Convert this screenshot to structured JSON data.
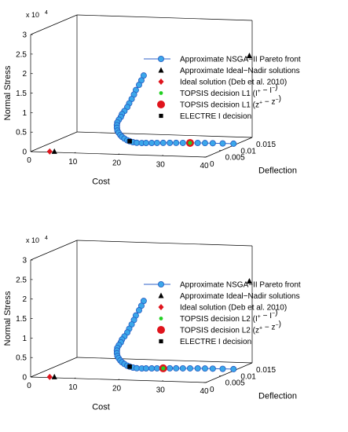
{
  "chart_data": [
    {
      "type": "scatter",
      "projection": "3d",
      "xlabel": "Cost",
      "ylabel": "Deflection",
      "zlabel": "Normal Stress",
      "z_exponent_label": "x 10",
      "z_exponent_power": "4",
      "xlim": [
        0,
        40
      ],
      "ylim": [
        0,
        0.015
      ],
      "zlim": [
        0,
        3
      ],
      "x_ticks": [
        "0",
        "10",
        "20",
        "30",
        "40"
      ],
      "y_ticks": [
        "0",
        "0.005",
        "0.01",
        "0.015"
      ],
      "z_ticks": [
        "0",
        "0.5",
        "1",
        "1.5",
        "2",
        "2.5",
        "3"
      ],
      "legend_position": "upper-right",
      "legend": [
        {
          "label": "Approximate NSGA−II Pareto front",
          "marker": "line-circle",
          "color": "#3ba7ea"
        },
        {
          "label": "Approximate Ideal−Nadir solutions",
          "marker": "triangle",
          "color": "#000000"
        },
        {
          "label": "Ideal solution (Deb et al. 2010)",
          "marker": "diamond",
          "color": "#e0141c"
        },
        {
          "label_prefix": "TOPSIS decision L1 (",
          "label_a": "I",
          "label_b": "I",
          "marker": "small-circle",
          "color": "#22d022",
          "sup": "+",
          "sup2": "−",
          "sep": " − "
        },
        {
          "label_prefix": "TOPSIS decision L1 (",
          "label_a": "z",
          "label_b": "z",
          "marker": "big-circle",
          "color": "#e0141c",
          "sup": "+",
          "sup2": "−",
          "sep": " − "
        },
        {
          "label": "ELECTRE I decision",
          "marker": "square",
          "color": "#000000"
        }
      ],
      "series": [
        {
          "name": "Approximate NSGA−II Pareto front",
          "points": [
            [
              25.6,
              0.0003,
              2.03
            ],
            [
              25.0,
              0.0004,
              1.9
            ],
            [
              24.4,
              0.0005,
              1.78
            ],
            [
              23.6,
              0.0006,
              1.64
            ],
            [
              23.1,
              0.0007,
              1.52
            ],
            [
              22.5,
              0.0008,
              1.4
            ],
            [
              21.8,
              0.001,
              1.28
            ],
            [
              21.3,
              0.0011,
              1.18
            ],
            [
              20.5,
              0.0013,
              1.07
            ],
            [
              19.8,
              0.0015,
              0.98
            ],
            [
              19.4,
              0.0017,
              0.9
            ],
            [
              18.8,
              0.0019,
              0.82
            ],
            [
              18.3,
              0.0021,
              0.74
            ],
            [
              18.0,
              0.0024,
              0.66
            ],
            [
              17.8,
              0.0027,
              0.58
            ],
            [
              17.7,
              0.003,
              0.5
            ],
            [
              17.7,
              0.0034,
              0.43
            ],
            [
              17.8,
              0.0038,
              0.36
            ],
            [
              17.9,
              0.0042,
              0.3
            ],
            [
              18.1,
              0.0047,
              0.24
            ],
            [
              18.4,
              0.0052,
              0.18
            ],
            [
              18.6,
              0.0057,
              0.14
            ],
            [
              19.0,
              0.0062,
              0.1
            ],
            [
              19.5,
              0.0067,
              0.07
            ],
            [
              20.3,
              0.0072,
              0.05
            ],
            [
              21.0,
              0.0076,
              0.04
            ],
            [
              22.0,
              0.008,
              0.03
            ],
            [
              23.0,
              0.0083,
              0.025
            ],
            [
              24.2,
              0.0086,
              0.02
            ],
            [
              25.5,
              0.0089,
              0.015
            ],
            [
              26.8,
              0.0091,
              0.012
            ],
            [
              28.2,
              0.0093,
              0.01
            ],
            [
              29.7,
              0.0095,
              0.008
            ],
            [
              31.3,
              0.0097,
              0.006
            ],
            [
              32.9,
              0.0098,
              0.005
            ],
            [
              34.6,
              0.0099,
              0.004
            ],
            [
              36.8,
              0.01,
              0.003
            ],
            [
              39.2,
              0.0101,
              0.0025
            ]
          ]
        },
        {
          "name": "Approximate Ideal−Nadir solutions",
          "points": [
            [
              5.0,
              0.0006,
              0.0
            ],
            [
              39.5,
              0.0148,
              2.1
            ]
          ]
        },
        {
          "name": "Ideal solution (Deb et al. 2010)",
          "points": [
            [
              4.0,
              0.0005,
              0.0
            ]
          ]
        },
        {
          "name": "TOPSIS decision L1",
          "points": [
            [
              29.7,
              0.0095,
              0.008
            ]
          ]
        },
        {
          "name": "TOPSIS decision L1 (z)",
          "points": [
            [
              29.7,
              0.0095,
              0.008
            ]
          ]
        },
        {
          "name": "ELECTRE I decision",
          "points": [
            [
              18.6,
              0.0057,
              0.14
            ]
          ]
        }
      ]
    },
    {
      "type": "scatter",
      "projection": "3d",
      "xlabel": "Cost",
      "ylabel": "Deflection",
      "zlabel": "Normal Stress",
      "z_exponent_label": "x 10",
      "z_exponent_power": "4",
      "xlim": [
        0,
        40
      ],
      "ylim": [
        0,
        0.015
      ],
      "zlim": [
        0,
        3
      ],
      "x_ticks": [
        "0",
        "10",
        "20",
        "30",
        "40"
      ],
      "y_ticks": [
        "0",
        "0.005",
        "0.01",
        "0.015"
      ],
      "z_ticks": [
        "0",
        "0.5",
        "1",
        "1.5",
        "2",
        "2.5",
        "3"
      ],
      "legend_position": "upper-right",
      "legend": [
        {
          "label": "Approximate NSGA−II Pareto front",
          "marker": "line-circle",
          "color": "#3ba7ea"
        },
        {
          "label": "Approximate Ideal−Nadir solutions",
          "marker": "triangle",
          "color": "#000000"
        },
        {
          "label": "Ideal solution (Deb et al. 2010)",
          "marker": "diamond",
          "color": "#e0141c"
        },
        {
          "label_prefix": "TOPSIS decision L2 (",
          "label_a": "I",
          "label_b": "I",
          "marker": "small-circle",
          "color": "#22d022",
          "sup": "+",
          "sup2": "−",
          "sep": " − "
        },
        {
          "label_prefix": "TOPSIS decision L2 (",
          "label_a": "z",
          "label_b": "z",
          "marker": "big-circle",
          "color": "#e0141c",
          "sup": "+",
          "sup2": "−",
          "sep": " − "
        },
        {
          "label": "ELECTRE I decision",
          "marker": "square",
          "color": "#000000"
        }
      ],
      "series": [
        {
          "name": "Approximate NSGA−II Pareto front",
          "points": [
            [
              25.6,
              0.0003,
              2.03
            ],
            [
              25.0,
              0.0004,
              1.9
            ],
            [
              24.4,
              0.0005,
              1.78
            ],
            [
              23.6,
              0.0006,
              1.64
            ],
            [
              23.1,
              0.0007,
              1.52
            ],
            [
              22.5,
              0.0008,
              1.4
            ],
            [
              21.8,
              0.001,
              1.28
            ],
            [
              21.3,
              0.0011,
              1.18
            ],
            [
              20.5,
              0.0013,
              1.07
            ],
            [
              19.8,
              0.0015,
              0.98
            ],
            [
              19.4,
              0.0017,
              0.9
            ],
            [
              18.8,
              0.0019,
              0.82
            ],
            [
              18.3,
              0.0021,
              0.74
            ],
            [
              18.0,
              0.0024,
              0.66
            ],
            [
              17.8,
              0.0027,
              0.58
            ],
            [
              17.7,
              0.003,
              0.5
            ],
            [
              17.7,
              0.0034,
              0.43
            ],
            [
              17.8,
              0.0038,
              0.36
            ],
            [
              17.9,
              0.0042,
              0.3
            ],
            [
              18.1,
              0.0047,
              0.24
            ],
            [
              18.4,
              0.0052,
              0.18
            ],
            [
              18.6,
              0.0057,
              0.14
            ],
            [
              19.0,
              0.0062,
              0.1
            ],
            [
              19.5,
              0.0067,
              0.07
            ],
            [
              20.3,
              0.0072,
              0.05
            ],
            [
              21.0,
              0.0076,
              0.04
            ],
            [
              22.0,
              0.008,
              0.03
            ],
            [
              23.0,
              0.0083,
              0.025
            ],
            [
              24.2,
              0.0086,
              0.02
            ],
            [
              25.5,
              0.0089,
              0.015
            ],
            [
              26.8,
              0.0091,
              0.012
            ],
            [
              28.2,
              0.0093,
              0.01
            ],
            [
              29.7,
              0.0095,
              0.008
            ],
            [
              31.3,
              0.0097,
              0.006
            ],
            [
              32.9,
              0.0098,
              0.005
            ],
            [
              34.6,
              0.0099,
              0.004
            ],
            [
              36.8,
              0.01,
              0.003
            ],
            [
              39.2,
              0.0101,
              0.0025
            ]
          ]
        },
        {
          "name": "Approximate Ideal−Nadir solutions",
          "points": [
            [
              5.0,
              0.0006,
              0.0
            ],
            [
              39.5,
              0.0148,
              2.1
            ]
          ]
        },
        {
          "name": "Ideal solution (Deb et al. 2010)",
          "points": [
            [
              4.0,
              0.0005,
              0.0
            ]
          ]
        },
        {
          "name": "TOPSIS decision L2",
          "points": [
            [
              24.2,
              0.0086,
              0.02
            ]
          ]
        },
        {
          "name": "TOPSIS decision L2 (z)",
          "points": [
            [
              24.2,
              0.0086,
              0.02
            ]
          ]
        },
        {
          "name": "ELECTRE I decision",
          "points": [
            [
              18.6,
              0.0057,
              0.14
            ]
          ]
        }
      ]
    }
  ]
}
